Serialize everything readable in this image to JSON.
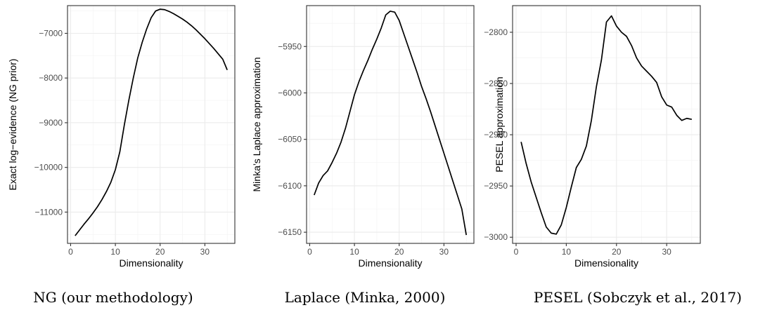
{
  "chart_data": [
    {
      "type": "line",
      "caption": "NG (our methodology)",
      "xlabel": "Dimensionality",
      "ylabel": "Exact log−evidence (NG prior)",
      "xlim": [
        -0.7,
        36.7
      ],
      "ylim": [
        -11700,
        -6380
      ],
      "xticks": [
        0,
        10,
        20,
        30
      ],
      "yticks": [
        -7000,
        -8000,
        -9000,
        -10000,
        -11000
      ],
      "ytick_labels": [
        "−7000",
        "−8000",
        "−9000",
        "−10000",
        "−11000"
      ],
      "grid": true,
      "x": [
        1,
        2,
        3,
        4,
        5,
        6,
        7,
        8,
        9,
        10,
        11,
        12,
        13,
        14,
        15,
        16,
        17,
        18,
        19,
        20,
        21,
        22,
        23,
        24,
        25,
        26,
        27,
        28,
        29,
        30,
        31,
        32,
        33,
        34,
        35
      ],
      "y": [
        -11530,
        -11400,
        -11270,
        -11150,
        -11020,
        -10880,
        -10720,
        -10540,
        -10330,
        -10050,
        -9650,
        -9050,
        -8500,
        -8000,
        -7550,
        -7200,
        -6900,
        -6650,
        -6500,
        -6460,
        -6470,
        -6510,
        -6560,
        -6620,
        -6680,
        -6750,
        -6830,
        -6920,
        -7020,
        -7120,
        -7230,
        -7340,
        -7460,
        -7580,
        -7820
      ]
    },
    {
      "type": "line",
      "caption": "Laplace (Minka, 2000)",
      "xlabel": "Dimensionality",
      "ylabel": "Minka’s Laplace approximation",
      "xlim": [
        -0.7,
        36.7
      ],
      "ylim": [
        -6162,
        -5906
      ],
      "xticks": [
        0,
        10,
        20,
        30
      ],
      "yticks": [
        -5950,
        -6000,
        -6050,
        -6100,
        -6150
      ],
      "ytick_labels": [
        "−5950",
        "−6000",
        "−6050",
        "−6100",
        "−6150"
      ],
      "grid": true,
      "x": [
        1,
        2,
        3,
        4,
        5,
        6,
        7,
        8,
        9,
        10,
        11,
        12,
        13,
        14,
        15,
        16,
        17,
        18,
        19,
        20,
        21,
        22,
        23,
        24,
        25,
        26,
        27,
        28,
        29,
        30,
        31,
        32,
        33,
        34,
        35
      ],
      "y": [
        -6110,
        -6097,
        -6089,
        -6084,
        -6075,
        -6065,
        -6053,
        -6038,
        -6020,
        -6002,
        -5988,
        -5976,
        -5965,
        -5953,
        -5942,
        -5930,
        -5916,
        -5912,
        -5913,
        -5922,
        -5936,
        -5950,
        -5964,
        -5978,
        -5993,
        -6006,
        -6020,
        -6035,
        -6050,
        -6065,
        -6080,
        -6095,
        -6110,
        -6125,
        -6153
      ]
    },
    {
      "type": "line",
      "caption": "PESEL (Sobczyk et al., 2017)",
      "xlabel": "Dimensionality",
      "ylabel": "PESEL approximation",
      "xlim": [
        -0.7,
        36.7
      ],
      "ylim": [
        -3006,
        -2774
      ],
      "xticks": [
        0,
        10,
        20,
        30
      ],
      "yticks": [
        -2800,
        -2850,
        -2900,
        -2950,
        -3000
      ],
      "ytick_labels": [
        "−2800",
        "−2850",
        "−2900",
        "−2950",
        "−3000"
      ],
      "grid": true,
      "x": [
        1,
        2,
        3,
        4,
        5,
        6,
        7,
        8,
        9,
        10,
        11,
        12,
        13,
        14,
        15,
        16,
        17,
        18,
        19,
        20,
        21,
        22,
        23,
        24,
        25,
        26,
        27,
        28,
        29,
        30,
        31,
        32,
        33,
        34,
        35
      ],
      "y": [
        -2907,
        -2928,
        -2946,
        -2961,
        -2976,
        -2990,
        -2996,
        -2997,
        -2988,
        -2971,
        -2951,
        -2932,
        -2924,
        -2911,
        -2886,
        -2853,
        -2827,
        -2790,
        -2784,
        -2794,
        -2800,
        -2804,
        -2813,
        -2825,
        -2833,
        -2838,
        -2843,
        -2849,
        -2863,
        -2871,
        -2873,
        -2881,
        -2886,
        -2884,
        -2885
      ]
    }
  ]
}
